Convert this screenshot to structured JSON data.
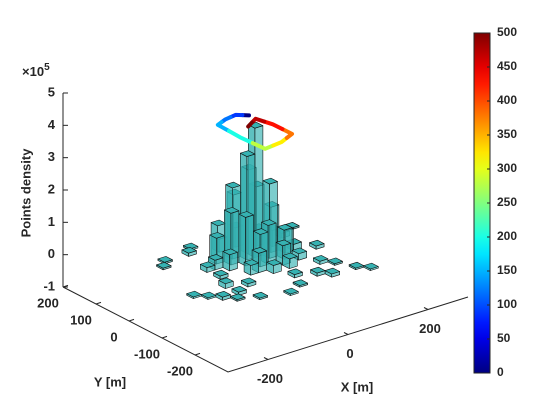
{
  "chart_data": {
    "type": "bar3d",
    "zlabel": "Points density",
    "zmultiplier": {
      "base": "×10",
      "exponent": "5"
    },
    "xlabel": "X [m]",
    "ylabel": "Y [m]",
    "xlim": [
      -300,
      300
    ],
    "ylim": [
      -300,
      200
    ],
    "zlim": [
      -1,
      5
    ],
    "xticks": [
      -200,
      0,
      200
    ],
    "yticks": [
      -200,
      -100,
      0,
      100,
      200
    ],
    "zticks": [
      -1,
      0,
      1,
      2,
      3,
      4,
      5
    ],
    "color": "#36b2b2",
    "x": [
      0,
      -20,
      0,
      20,
      -40,
      20,
      -60,
      40,
      -20,
      -40,
      0,
      -20,
      40,
      -60,
      -80,
      60,
      20,
      -40,
      -80,
      60,
      0,
      -40,
      40,
      -100,
      20,
      -60,
      80,
      -20,
      60,
      -160,
      -200,
      -180,
      -160,
      -140,
      -120,
      -100,
      -140,
      -120,
      -180,
      -100,
      120,
      100,
      140,
      80,
      100,
      120,
      60,
      40,
      -20,
      140,
      -60,
      -220,
      0,
      -120,
      -80
    ],
    "y": [
      -20,
      -20,
      0,
      -40,
      0,
      0,
      -20,
      -20,
      20,
      -40,
      -60,
      -60,
      -60,
      20,
      0,
      -40,
      -80,
      -80,
      -40,
      0,
      40,
      40,
      20,
      -20,
      -100,
      -80,
      -40,
      -100,
      -80,
      60,
      -120,
      -140,
      -160,
      -140,
      -180,
      -120,
      -100,
      -60,
      40,
      60,
      -60,
      20,
      40,
      -120,
      -140,
      -180,
      -180,
      -160,
      -180,
      -200,
      -200,
      -100,
      -140,
      -20,
      80
    ],
    "values": [
      4.0,
      3.2,
      2.6,
      2.3,
      2.2,
      2.0,
      1.6,
      1.4,
      1.8,
      1.5,
      1.2,
      1.0,
      0.9,
      1.0,
      0.8,
      0.7,
      0.6,
      0.6,
      0.5,
      0.5,
      0.6,
      0.4,
      0.5,
      0.3,
      0.3,
      0.3,
      0.2,
      0.25,
      0.2,
      0.05,
      0.05,
      0.1,
      0.05,
      0.1,
      0.05,
      0.1,
      0.15,
      0.1,
      0.05,
      0.1,
      0.1,
      0.15,
      0.05,
      0.1,
      0.05,
      0.05,
      0.1,
      0.1,
      0.05,
      0.05,
      0.05,
      0.05,
      0.1,
      0.15,
      0.05
    ],
    "trajectory": {
      "x": [
        0,
        -19,
        -50,
        -77,
        -80,
        -76,
        -30,
        11,
        10,
        0,
        -35
      ],
      "y": [
        0,
        17,
        12,
        1,
        -70,
        -141,
        -135,
        -117,
        -60,
        -20,
        -40
      ],
      "z": [
        4.2,
        4.2,
        4.2,
        4.2,
        4.2,
        4.2,
        4.2,
        4.2,
        4.2,
        4.2,
        4.2
      ],
      "c": [
        0,
        90,
        120,
        150,
        200,
        280,
        320,
        380,
        430,
        470,
        500
      ]
    },
    "colorbar": {
      "colormap": "jet",
      "clim": [
        0,
        500
      ],
      "ticks": [
        0,
        50,
        100,
        150,
        200,
        250,
        300,
        350,
        400,
        450,
        500
      ]
    }
  }
}
